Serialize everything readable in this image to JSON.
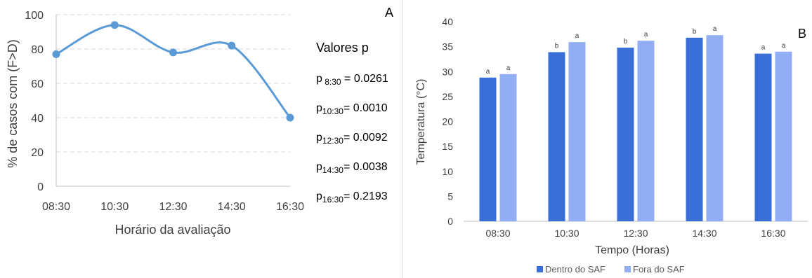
{
  "chart_data": [
    {
      "type": "line",
      "title": "",
      "xlabel": "Horário da avaliação",
      "ylabel": "% de casos  com  (F>D)",
      "ylim": [
        0,
        100
      ],
      "yticks": [
        "0",
        "20",
        "40",
        "60",
        "80",
        "100"
      ],
      "categories": [
        "08:30",
        "10:30",
        "12:30",
        "14:30",
        "16:30"
      ],
      "series": [
        {
          "values": [
            77,
            94,
            78,
            82,
            40
          ]
        }
      ],
      "grid": true,
      "color": "#5b9bd5"
    },
    {
      "type": "bar",
      "title": "",
      "xlabel": "Tempo (Horas)",
      "ylabel": "Temperatura (°C)",
      "ylim": [
        0,
        40
      ],
      "yticks": [
        "0",
        "5",
        "10",
        "15",
        "20",
        "25",
        "30",
        "35",
        "40"
      ],
      "categories": [
        "08:30",
        "10:30",
        "12:30",
        "14:30",
        "16:30"
      ],
      "series": [
        {
          "name": "Dentro do SAF",
          "values": [
            28.8,
            33.9,
            34.8,
            36.8,
            33.6
          ],
          "labels": [
            "a",
            "b",
            "b",
            "b",
            "a"
          ],
          "color": "#3a6fd8"
        },
        {
          "name": "Fora do SAF",
          "values": [
            29.5,
            35.9,
            36.2,
            37.3,
            34.0
          ],
          "labels": [
            "a",
            "a",
            "a",
            "a",
            "a"
          ],
          "color": "#91aef4"
        }
      ],
      "legend": "bottom",
      "grid": false
    }
  ],
  "pvalues": {
    "heading": "Valores p",
    "items": [
      {
        "p": "p",
        "sub": " 8:30",
        "value": " = 0.0261"
      },
      {
        "p": "p",
        "sub": "10:30",
        "value": "= 0.0010"
      },
      {
        "p": "p",
        "sub": "12:30",
        "value": "= 0.0092"
      },
      {
        "p": "p",
        "sub": "14:30",
        "value": "= 0.0038"
      },
      {
        "p": "p",
        "sub": "16:30",
        "value": "= 0.2193"
      }
    ]
  },
  "panels": {
    "a": "A",
    "b": "B"
  }
}
